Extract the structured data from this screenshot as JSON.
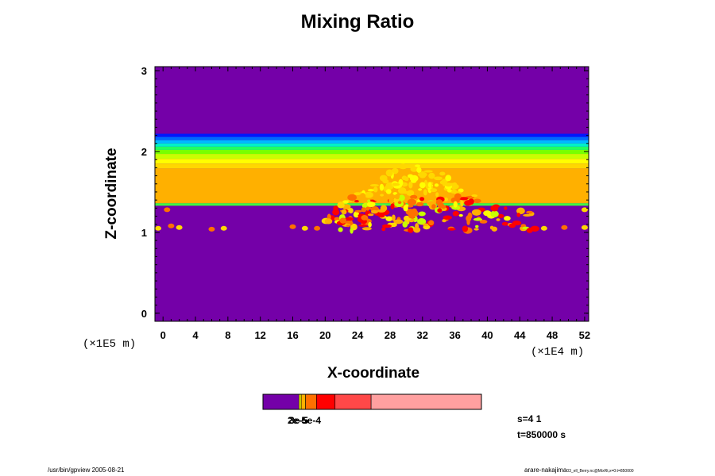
{
  "chart_data": {
    "type": "heatmap",
    "title": "Mixing Ratio",
    "xlabel": "X-coordinate",
    "ylabel": "Z-coordinate",
    "x_scale_label": "(×1E4 m)",
    "y_scale_label": "(×1E5 m)",
    "xlim": [
      -1,
      52.5
    ],
    "ylim": [
      -0.1,
      3.05
    ],
    "x_ticks": [
      "0",
      "4",
      "8",
      "12",
      "16",
      "20",
      "24",
      "28",
      "32",
      "36",
      "40",
      "44",
      "48",
      "52"
    ],
    "y_ticks": [
      "0",
      "1",
      "2",
      "3"
    ],
    "background_color": "#7400a8",
    "vertical_bands": [
      {
        "z_from": 2.22,
        "z_to": 2.18,
        "color": "#0018ff"
      },
      {
        "z_from": 2.18,
        "z_to": 2.14,
        "color": "#0068ff"
      },
      {
        "z_from": 2.14,
        "z_to": 2.1,
        "color": "#00b8ff"
      },
      {
        "z_from": 2.1,
        "z_to": 2.06,
        "color": "#00f0c8"
      },
      {
        "z_from": 2.06,
        "z_to": 2.02,
        "color": "#20ff60"
      },
      {
        "z_from": 2.02,
        "z_to": 1.97,
        "color": "#78ff00"
      },
      {
        "z_from": 1.97,
        "z_to": 1.91,
        "color": "#c8ff00"
      },
      {
        "z_from": 1.91,
        "z_to": 1.85,
        "color": "#ffff00"
      },
      {
        "z_from": 1.85,
        "z_to": 1.79,
        "color": "#ffd800"
      },
      {
        "z_from": 1.79,
        "z_to": 1.36,
        "color": "#ffb000"
      },
      {
        "z_from": 1.36,
        "z_to": 1.33,
        "color": "#40ff40"
      }
    ],
    "colorbar": {
      "segments": [
        {
          "from": 0.0,
          "to": 0.165,
          "color": "#7400a8"
        },
        {
          "from": 0.165,
          "to": 0.175,
          "color": "#ffff00"
        },
        {
          "from": 0.175,
          "to": 0.195,
          "color": "#ffb000"
        },
        {
          "from": 0.195,
          "to": 0.245,
          "color": "#ff7000"
        },
        {
          "from": 0.245,
          "to": 0.33,
          "color": "#ff0000"
        },
        {
          "from": 0.33,
          "to": 0.495,
          "color": "#ff4848"
        },
        {
          "from": 0.495,
          "to": 1.0,
          "color": "#ffa0a0"
        }
      ],
      "labels": [
        "2e-5",
        "3e-5",
        "5e-4"
      ]
    }
  },
  "annotations": {
    "s_label": "s=4 1",
    "t_label": "t=850000 s",
    "footer_left": "/usr/bin/gpview 2005-08-21",
    "footer_right_main": "arare-nakajima",
    "footer_right_small": "03_ell_Berry.nc@MixRt,x=0:t=850000"
  }
}
